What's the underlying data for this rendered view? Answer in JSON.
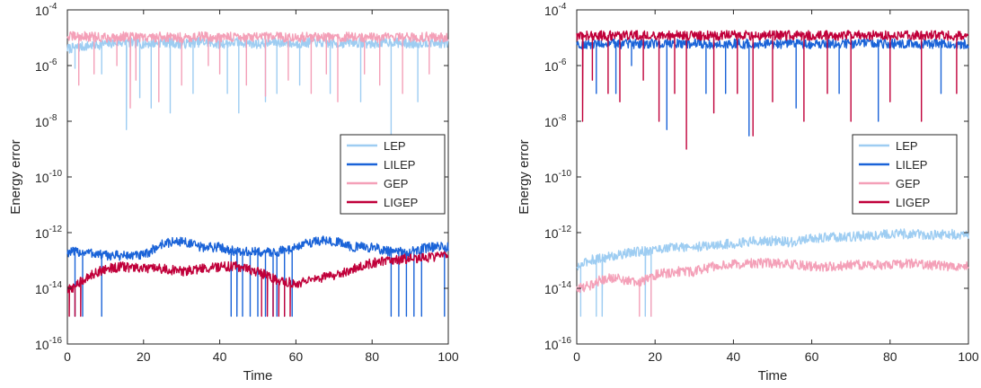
{
  "chart_data": [
    {
      "type": "line",
      "xlabel": "Time",
      "ylabel": "Energy error",
      "xlim": [
        0,
        100
      ],
      "ylim": [
        1e-16,
        0.0001
      ],
      "y_scale": "log",
      "grid": false,
      "legend_position": "right",
      "x_ticks": [
        {
          "value": 0,
          "label": "0"
        },
        {
          "value": 20,
          "label": "20"
        },
        {
          "value": 40,
          "label": "40"
        },
        {
          "value": 60,
          "label": "60"
        },
        {
          "value": 80,
          "label": "80"
        },
        {
          "value": 100,
          "label": "100"
        }
      ],
      "y_ticks": [
        {
          "value": -16,
          "base": "10",
          "exp": "-16"
        },
        {
          "value": -14,
          "base": "10",
          "exp": "-14"
        },
        {
          "value": -12,
          "base": "10",
          "exp": "-12"
        },
        {
          "value": -10,
          "base": "10",
          "exp": "-10"
        },
        {
          "value": -8,
          "base": "10",
          "exp": "-8"
        },
        {
          "value": -6,
          "base": "10",
          "exp": "-6"
        },
        {
          "value": -4,
          "base": "10",
          "exp": "-4"
        }
      ],
      "series": [
        {
          "name": "LEP",
          "color": "#9ecdf2",
          "x": [
            0,
            5,
            10,
            15,
            20,
            25,
            30,
            35,
            40,
            45,
            50,
            55,
            60,
            65,
            70,
            75,
            80,
            85,
            90,
            95,
            100
          ],
          "y": [
            4e-06,
            5e-06,
            6e-06,
            7e-06,
            6e-06,
            7e-06,
            6e-06,
            7e-06,
            6e-06,
            7e-06,
            6e-06,
            7e-06,
            6e-06,
            7e-06,
            6e-06,
            7e-06,
            6e-06,
            7e-06,
            6e-06,
            7e-06,
            6e-06
          ],
          "dips": [
            {
              "x": 2,
              "y": 8e-07
            },
            {
              "x": 9,
              "y": 5e-07
            },
            {
              "x": 15.5,
              "y": 5e-09
            },
            {
              "x": 19,
              "y": 7e-08
            },
            {
              "x": 22,
              "y": 3e-08
            },
            {
              "x": 27,
              "y": 2e-08
            },
            {
              "x": 33,
              "y": 1e-07
            },
            {
              "x": 42,
              "y": 1e-07
            },
            {
              "x": 45,
              "y": 2e-08
            },
            {
              "x": 52,
              "y": 5e-08
            },
            {
              "x": 55,
              "y": 1e-07
            },
            {
              "x": 61,
              "y": 2e-07
            },
            {
              "x": 69,
              "y": 1e-07
            },
            {
              "x": 77,
              "y": 5e-08
            },
            {
              "x": 85,
              "y": 3e-09
            },
            {
              "x": 92,
              "y": 5e-08
            }
          ]
        },
        {
          "name": "LILEP",
          "color": "#1a63d8",
          "x": [
            0,
            5,
            10,
            15,
            20,
            25,
            30,
            35,
            40,
            45,
            50,
            55,
            60,
            65,
            70,
            75,
            80,
            85,
            90,
            95,
            100
          ],
          "y": [
            2e-13,
            2e-13,
            1.5e-13,
            1.5e-13,
            1.5e-13,
            4e-13,
            5e-13,
            3e-13,
            3e-13,
            2e-13,
            2e-13,
            2e-13,
            3e-13,
            5e-13,
            5e-13,
            3e-13,
            3e-13,
            2e-13,
            2e-13,
            3e-13,
            3e-13
          ],
          "dips": [
            {
              "x": 2,
              "y": 1e-15
            },
            {
              "x": 4,
              "y": 1e-15
            },
            {
              "x": 9,
              "y": 1e-15
            },
            {
              "x": 43,
              "y": 1e-15
            },
            {
              "x": 44.5,
              "y": 1e-15
            },
            {
              "x": 46,
              "y": 1e-15
            },
            {
              "x": 48,
              "y": 1e-15
            },
            {
              "x": 50,
              "y": 1e-15
            },
            {
              "x": 52,
              "y": 1e-15
            },
            {
              "x": 54,
              "y": 1e-15
            },
            {
              "x": 55,
              "y": 1e-15
            },
            {
              "x": 57,
              "y": 1e-15
            },
            {
              "x": 59,
              "y": 1e-15
            },
            {
              "x": 85,
              "y": 1e-15
            },
            {
              "x": 87,
              "y": 1e-15
            },
            {
              "x": 89,
              "y": 1e-15
            },
            {
              "x": 91,
              "y": 1e-15
            },
            {
              "x": 93,
              "y": 1e-15
            },
            {
              "x": 99,
              "y": 1e-15
            }
          ]
        },
        {
          "name": "GEP",
          "color": "#f4a0b8",
          "x": [
            0,
            5,
            10,
            15,
            20,
            25,
            30,
            35,
            40,
            45,
            50,
            55,
            60,
            65,
            70,
            75,
            80,
            85,
            90,
            95,
            100
          ],
          "y": [
            1.1e-05,
            1.1e-05,
            1e-05,
            1.1e-05,
            1e-05,
            1.1e-05,
            1e-05,
            1.1e-05,
            1e-05,
            1.1e-05,
            1e-05,
            1.1e-05,
            1e-05,
            1.1e-05,
            1e-05,
            1.1e-05,
            1e-05,
            1.1e-05,
            1e-05,
            1.1e-05,
            1e-05
          ],
          "dips": [
            {
              "x": 3,
              "y": 2e-07
            },
            {
              "x": 7,
              "y": 5e-07
            },
            {
              "x": 13,
              "y": 1e-06
            },
            {
              "x": 16.5,
              "y": 3e-08
            },
            {
              "x": 18,
              "y": 3e-07
            },
            {
              "x": 24,
              "y": 5e-08
            },
            {
              "x": 30,
              "y": 2e-07
            },
            {
              "x": 37,
              "y": 1e-06
            },
            {
              "x": 40,
              "y": 5e-07
            },
            {
              "x": 47,
              "y": 2e-07
            },
            {
              "x": 52,
              "y": 8e-08
            },
            {
              "x": 58,
              "y": 3e-07
            },
            {
              "x": 64,
              "y": 1e-07
            },
            {
              "x": 68,
              "y": 5e-07
            },
            {
              "x": 71,
              "y": 5e-08
            },
            {
              "x": 78,
              "y": 5e-07
            },
            {
              "x": 82,
              "y": 2e-07
            },
            {
              "x": 88,
              "y": 1e-07
            },
            {
              "x": 95,
              "y": 5e-07
            }
          ]
        },
        {
          "name": "LIGEP",
          "color": "#c0003a",
          "x": [
            0,
            3,
            6,
            10,
            15,
            20,
            25,
            30,
            35,
            40,
            45,
            50,
            55,
            60,
            65,
            70,
            75,
            80,
            85,
            90,
            95,
            100
          ],
          "y": [
            8e-15,
            1.5e-14,
            3e-14,
            5e-14,
            6e-14,
            5e-14,
            5e-14,
            4e-14,
            5e-14,
            6e-14,
            6e-14,
            4e-14,
            2e-14,
            1.5e-14,
            2e-14,
            3e-14,
            5e-14,
            8e-14,
            1e-13,
            1.2e-13,
            1.3e-13,
            1.5e-13
          ],
          "dips": [
            {
              "x": 0.5,
              "y": 1e-15
            },
            {
              "x": 2,
              "y": 1e-15
            },
            {
              "x": 3.5,
              "y": 1e-15
            },
            {
              "x": 51,
              "y": 1e-15
            },
            {
              "x": 52.5,
              "y": 1e-15
            },
            {
              "x": 54,
              "y": 1e-15
            },
            {
              "x": 55.5,
              "y": 1e-15
            },
            {
              "x": 57,
              "y": 1e-15
            },
            {
              "x": 58.5,
              "y": 1e-15
            }
          ]
        }
      ]
    },
    {
      "type": "line",
      "xlabel": "Time",
      "ylabel": "Energy error",
      "xlim": [
        0,
        100
      ],
      "ylim": [
        1e-16,
        0.0001
      ],
      "y_scale": "log",
      "grid": false,
      "legend_position": "right",
      "x_ticks": [
        {
          "value": 0,
          "label": "0"
        },
        {
          "value": 20,
          "label": "20"
        },
        {
          "value": 40,
          "label": "40"
        },
        {
          "value": 60,
          "label": "60"
        },
        {
          "value": 80,
          "label": "80"
        },
        {
          "value": 100,
          "label": "100"
        }
      ],
      "y_ticks": [
        {
          "value": -16,
          "base": "10",
          "exp": "-16"
        },
        {
          "value": -14,
          "base": "10",
          "exp": "-14"
        },
        {
          "value": -12,
          "base": "10",
          "exp": "-12"
        },
        {
          "value": -10,
          "base": "10",
          "exp": "-10"
        },
        {
          "value": -8,
          "base": "10",
          "exp": "-8"
        },
        {
          "value": -6,
          "base": "10",
          "exp": "-6"
        },
        {
          "value": -4,
          "base": "10",
          "exp": "-4"
        }
      ],
      "series": [
        {
          "name": "LEP",
          "color": "#9ecdf2",
          "x": [
            0,
            3,
            6,
            10,
            15,
            20,
            25,
            30,
            35,
            40,
            45,
            50,
            55,
            60,
            65,
            70,
            75,
            80,
            85,
            90,
            95,
            100
          ],
          "y": [
            5e-14,
            1e-13,
            1.2e-13,
            1.5e-13,
            2e-13,
            2.5e-13,
            3e-13,
            3e-13,
            3.5e-13,
            4e-13,
            5e-13,
            5e-13,
            4.5e-13,
            6e-13,
            7e-13,
            7e-13,
            8e-13,
            9e-13,
            9e-13,
            8e-13,
            9e-13,
            8e-13
          ],
          "dips": [
            {
              "x": 1,
              "y": 1e-15
            },
            {
              "x": 5,
              "y": 1e-15
            },
            {
              "x": 6.5,
              "y": 1e-15
            },
            {
              "x": 17.5,
              "y": 1e-15
            },
            {
              "x": 19,
              "y": 1e-15
            }
          ]
        },
        {
          "name": "LILEP",
          "color": "#1a63d8",
          "x": [
            0,
            5,
            10,
            15,
            20,
            25,
            30,
            35,
            40,
            45,
            50,
            55,
            60,
            65,
            70,
            75,
            80,
            85,
            90,
            95,
            100
          ],
          "y": [
            6e-06,
            6e-06,
            6e-06,
            6e-06,
            6e-06,
            6e-06,
            6e-06,
            6e-06,
            6e-06,
            6e-06,
            6e-06,
            6e-06,
            6e-06,
            6e-06,
            6e-06,
            6e-06,
            6e-06,
            6e-06,
            6e-06,
            6e-06,
            6e-06
          ],
          "dips": [
            {
              "x": 5,
              "y": 1e-07
            },
            {
              "x": 10,
              "y": 1e-07
            },
            {
              "x": 14,
              "y": 1e-06
            },
            {
              "x": 23,
              "y": 5e-09
            },
            {
              "x": 33,
              "y": 1e-07
            },
            {
              "x": 38,
              "y": 1e-07
            },
            {
              "x": 44,
              "y": 3e-09
            },
            {
              "x": 56,
              "y": 3e-08
            },
            {
              "x": 67,
              "y": 1e-07
            },
            {
              "x": 77,
              "y": 1e-08
            },
            {
              "x": 93,
              "y": 1e-07
            }
          ]
        },
        {
          "name": "GEP",
          "color": "#f4a0b8",
          "x": [
            0,
            3,
            6,
            10,
            15,
            20,
            25,
            30,
            35,
            40,
            45,
            50,
            55,
            60,
            65,
            70,
            75,
            80,
            85,
            90,
            95,
            100
          ],
          "y": [
            1e-14,
            1.2e-14,
            2e-14,
            2.5e-14,
            1.5e-14,
            3e-14,
            4e-14,
            4e-14,
            6e-14,
            7e-14,
            8e-14,
            8e-14,
            7e-14,
            6e-14,
            6e-14,
            7e-14,
            7e-14,
            7e-14,
            8e-14,
            7e-14,
            6e-14,
            6e-14
          ],
          "dips": [
            {
              "x": 16,
              "y": 1e-15
            },
            {
              "x": 19,
              "y": 1e-15
            }
          ]
        },
        {
          "name": "LIGEP",
          "color": "#c0003a",
          "x": [
            0,
            5,
            10,
            15,
            20,
            25,
            30,
            35,
            40,
            45,
            50,
            55,
            60,
            65,
            70,
            75,
            80,
            85,
            90,
            95,
            100
          ],
          "y": [
            1.2e-05,
            1.2e-05,
            1.2e-05,
            1.2e-05,
            1.2e-05,
            1.2e-05,
            1.2e-05,
            1.2e-05,
            1.2e-05,
            1.2e-05,
            1.2e-05,
            1.2e-05,
            1.2e-05,
            1.2e-05,
            1.2e-05,
            1.2e-05,
            1.2e-05,
            1.2e-05,
            1.2e-05,
            1.2e-05,
            1.2e-05
          ],
          "dips": [
            {
              "x": 1.5,
              "y": 1e-08
            },
            {
              "x": 4,
              "y": 3e-07
            },
            {
              "x": 8,
              "y": 1e-07
            },
            {
              "x": 11,
              "y": 5e-08
            },
            {
              "x": 17,
              "y": 3e-07
            },
            {
              "x": 21,
              "y": 1e-08
            },
            {
              "x": 25,
              "y": 1e-07
            },
            {
              "x": 28,
              "y": 1e-09
            },
            {
              "x": 35,
              "y": 2e-08
            },
            {
              "x": 41,
              "y": 1e-07
            },
            {
              "x": 45,
              "y": 3e-09
            },
            {
              "x": 50,
              "y": 5e-08
            },
            {
              "x": 58,
              "y": 1e-08
            },
            {
              "x": 64,
              "y": 1e-07
            },
            {
              "x": 70,
              "y": 1e-08
            },
            {
              "x": 80,
              "y": 5e-08
            },
            {
              "x": 88,
              "y": 1e-08
            },
            {
              "x": 97,
              "y": 1e-07
            }
          ]
        }
      ]
    }
  ]
}
